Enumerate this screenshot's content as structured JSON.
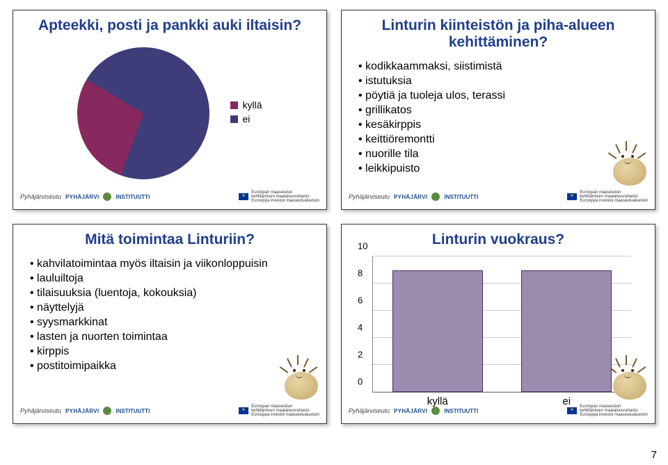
{
  "page_number": "7",
  "colors": {
    "title": "#1f3e8c",
    "bar_fill": "#9b8cb0",
    "bar_border": "#4a2b5a",
    "pie_slice1": "#87285e",
    "pie_slice2": "#3e3d7a",
    "grid": "#cccccc",
    "axis": "#888888"
  },
  "panel1": {
    "title": "Apteekki, posti ja pankki auki iltaisin?",
    "legend": {
      "a": "kyllä",
      "b": "ei"
    },
    "pie": {
      "slice1_pct": 28,
      "slice2_pct": 72
    }
  },
  "panel2": {
    "title": "Linturin kiinteistön ja piha-alueen kehittäminen?",
    "items": [
      "kodikkaammaksi, siistimistä",
      "istutuksia",
      "pöytiä ja tuoleja ulos, terassi",
      "grillikatos",
      "kesäkirppis",
      "keittiöremontti",
      "nuorille tila",
      "leikkipuisto"
    ]
  },
  "panel3": {
    "title": "Mitä toimintaa Linturiin?",
    "items": [
      "kahvilatoimintaa myös iltaisin ja viikonloppuisin",
      "lauluiltoja",
      "tilaisuuksia (luentoja, kokouksia)",
      "näyttelyjä",
      "syysmarkkinat",
      "lasten ja nuorten toimintaa",
      "kirppis",
      "postitoimipaikka"
    ]
  },
  "panel4": {
    "title": "Linturin vuokraus?",
    "ymax": 10,
    "yticks": [
      "0",
      "2",
      "4",
      "6",
      "8",
      "10"
    ],
    "bars": [
      {
        "label": "kyllä",
        "value": 9
      },
      {
        "label": "ei",
        "value": 9
      }
    ]
  },
  "footer": {
    "logo1": "Pyhäjärviseutu",
    "logo2": "PYHÄJÄRVI",
    "logo4": "INSTITUUTTI",
    "eu1": "Euroopan maaseudun",
    "eu2": "kehittämisen maatalousrahasto:",
    "eu3": "Eurooppa investoi maaseutualueisiin"
  }
}
